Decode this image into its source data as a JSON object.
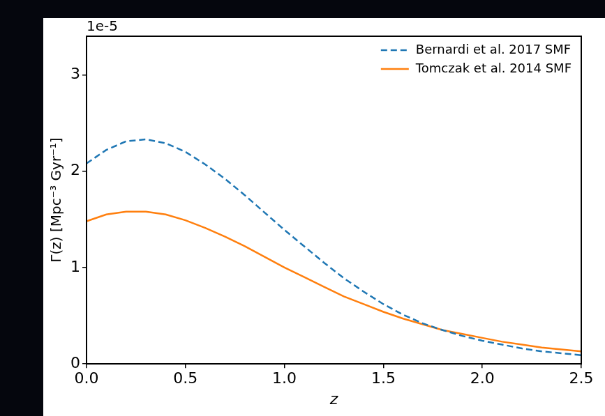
{
  "chart_data": {
    "type": "line",
    "x_label": "z",
    "y_label": "Γ(z) [Mpc⁻³ Gyr⁻¹]",
    "annotations": [
      "1e-5"
    ],
    "x": [
      0.0,
      0.1,
      0.2,
      0.3,
      0.4,
      0.5,
      0.6,
      0.7,
      0.8,
      0.9,
      1.0,
      1.1,
      1.2,
      1.3,
      1.4,
      1.5,
      1.6,
      1.7,
      1.8,
      1.9,
      2.0,
      2.1,
      2.2,
      2.3,
      2.4,
      2.5
    ],
    "series": [
      {
        "name": "Bernardi et al. 2017 SMF",
        "color": "#1f77b4",
        "line_style": "dashed",
        "values": [
          2.08e-05,
          2.22e-05,
          2.31e-05,
          2.33e-05,
          2.29e-05,
          2.2e-05,
          2.07e-05,
          1.92e-05,
          1.75e-05,
          1.57e-05,
          1.39e-05,
          1.22e-05,
          1.05e-05,
          8.9e-06,
          7.5e-06,
          6.2e-06,
          5.1e-06,
          4.2e-06,
          3.5e-06,
          2.9e-06,
          2.4e-06,
          2e-06,
          1.6e-06,
          1.3e-06,
          1.1e-06,
          9e-07
        ]
      },
      {
        "name": "Tomczak et al. 2014 SMF",
        "color": "#ff7f0e",
        "line_style": "solid",
        "values": [
          1.48e-05,
          1.55e-05,
          1.58e-05,
          1.58e-05,
          1.55e-05,
          1.49e-05,
          1.41e-05,
          1.32e-05,
          1.22e-05,
          1.11e-05,
          1e-05,
          9e-06,
          8e-06,
          7e-06,
          6.2e-06,
          5.4e-06,
          4.7e-06,
          4.1e-06,
          3.5e-06,
          3.1e-06,
          2.7e-06,
          2.3e-06,
          2e-06,
          1.7e-06,
          1.5e-06,
          1.3e-06
        ]
      }
    ],
    "xlim": [
      0,
      2.5
    ],
    "xticks": [
      {
        "value": 0,
        "label": "0.0"
      },
      0.5,
      {
        "value": 1,
        "label": "1.0"
      },
      1.5,
      {
        "value": 2,
        "label": "2.0"
      },
      2.5
    ],
    "ylim": [
      0,
      3.4e-05
    ],
    "yticks": [
      0,
      {
        "value": 1e-05,
        "label": "1"
      },
      {
        "value": 2e-05,
        "label": "2"
      },
      {
        "value": 3e-05,
        "label": "3"
      }
    ],
    "grid": false,
    "legend": "upper right"
  }
}
